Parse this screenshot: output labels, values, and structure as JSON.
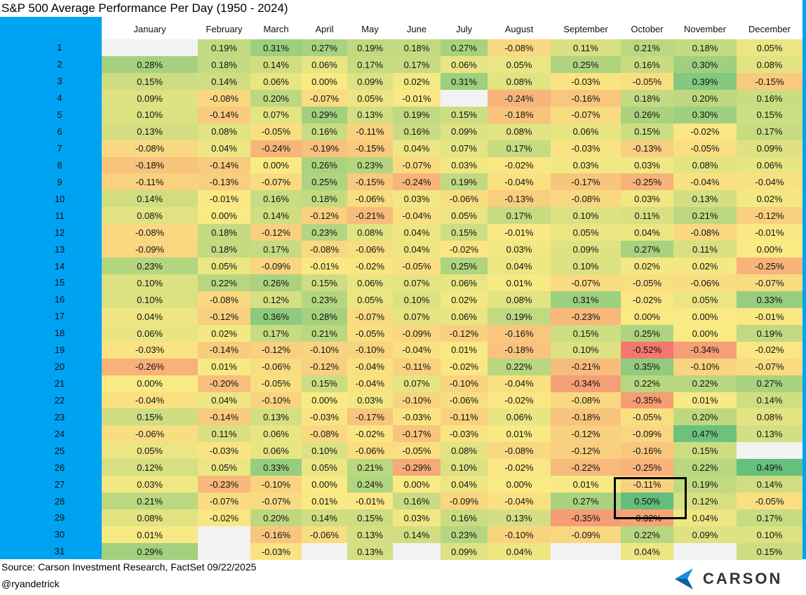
{
  "title": "S&P 500 Average Performance Per Day (1950 - 2024)",
  "table": {
    "columns": [
      "January",
      "February",
      "March",
      "April",
      "May",
      "June",
      "July",
      "August",
      "September",
      "October",
      "November",
      "December"
    ],
    "rows": [
      {
        "day": "1",
        "values": [
          null,
          "0.19%",
          "0.31%",
          "0.27%",
          "0.19%",
          "0.18%",
          "0.27%",
          "-0.08%",
          "0.11%",
          "0.21%",
          "0.18%",
          "0.05%"
        ]
      },
      {
        "day": "2",
        "values": [
          "0.28%",
          "0.18%",
          "0.14%",
          "0.06%",
          "0.17%",
          "0.17%",
          "0.06%",
          "0.05%",
          "0.25%",
          "0.16%",
          "0.30%",
          "0.08%"
        ]
      },
      {
        "day": "3",
        "values": [
          "0.15%",
          "0.14%",
          "0.06%",
          "0.00%",
          "0.09%",
          "0.02%",
          "0.31%",
          "0.08%",
          "-0.03%",
          "-0.05%",
          "0.39%",
          "-0.15%"
        ]
      },
      {
        "day": "4",
        "values": [
          "0.09%",
          "-0.08%",
          "0.20%",
          "-0.07%",
          "0.05%",
          "-0.01%",
          null,
          "-0.24%",
          "-0.16%",
          "0.18%",
          "0.20%",
          "0.16%"
        ]
      },
      {
        "day": "5",
        "values": [
          "0.10%",
          "-0.14%",
          "0.07%",
          "0.29%",
          "0.13%",
          "0.19%",
          "0.15%",
          "-0.18%",
          "-0.07%",
          "0.26%",
          "0.30%",
          "0.15%"
        ]
      },
      {
        "day": "6",
        "values": [
          "0.13%",
          "0.08%",
          "-0.05%",
          "0.16%",
          "-0.11%",
          "0.16%",
          "0.09%",
          "0.08%",
          "0.06%",
          "0.15%",
          "-0.02%",
          "0.17%"
        ]
      },
      {
        "day": "7",
        "values": [
          "-0.08%",
          "0.04%",
          "-0.24%",
          "-0.19%",
          "-0.15%",
          "0.04%",
          "0.07%",
          "0.17%",
          "-0.03%",
          "-0.13%",
          "-0.05%",
          "0.09%"
        ]
      },
      {
        "day": "8",
        "values": [
          "-0.18%",
          "-0.14%",
          "0.00%",
          "0.26%",
          "0.23%",
          "-0.07%",
          "0.03%",
          "-0.02%",
          "0.03%",
          "0.03%",
          "0.08%",
          "0.06%"
        ]
      },
      {
        "day": "9",
        "values": [
          "-0.11%",
          "-0.13%",
          "-0.07%",
          "0.25%",
          "-0.15%",
          "-0.24%",
          "0.19%",
          "-0.04%",
          "-0.17%",
          "-0.25%",
          "-0.04%",
          "-0.04%"
        ]
      },
      {
        "day": "10",
        "values": [
          "0.14%",
          "-0.01%",
          "0.16%",
          "0.18%",
          "-0.06%",
          "0.03%",
          "-0.06%",
          "-0.13%",
          "-0.08%",
          "0.03%",
          "0.13%",
          "0.02%"
        ]
      },
      {
        "day": "11",
        "values": [
          "0.08%",
          "0.00%",
          "0.14%",
          "-0.12%",
          "-0.21%",
          "-0.04%",
          "0.05%",
          "0.17%",
          "0.10%",
          "0.11%",
          "0.21%",
          "-0.12%"
        ]
      },
      {
        "day": "12",
        "values": [
          "-0.08%",
          "0.18%",
          "-0.12%",
          "0.23%",
          "0.08%",
          "0.04%",
          "0.15%",
          "-0.01%",
          "0.05%",
          "0.04%",
          "-0.08%",
          "-0.01%"
        ]
      },
      {
        "day": "13",
        "values": [
          "-0.09%",
          "0.18%",
          "0.17%",
          "-0.08%",
          "-0.06%",
          "0.04%",
          "-0.02%",
          "0.03%",
          "0.09%",
          "0.27%",
          "0.11%",
          "0.00%"
        ]
      },
      {
        "day": "14",
        "values": [
          "0.23%",
          "0.05%",
          "-0.09%",
          "-0.01%",
          "-0.02%",
          "-0.05%",
          "0.25%",
          "0.04%",
          "0.10%",
          "0.02%",
          "0.02%",
          "-0.25%"
        ]
      },
      {
        "day": "15",
        "values": [
          "0.10%",
          "0.22%",
          "0.26%",
          "0.15%",
          "0.06%",
          "0.07%",
          "0.06%",
          "0.01%",
          "-0.07%",
          "-0.05%",
          "-0.06%",
          "-0.07%"
        ]
      },
      {
        "day": "16",
        "values": [
          "0.10%",
          "-0.08%",
          "0.12%",
          "0.23%",
          "0.05%",
          "0.10%",
          "0.02%",
          "0.08%",
          "0.31%",
          "-0.02%",
          "0.05%",
          "0.33%"
        ]
      },
      {
        "day": "17",
        "values": [
          "0.04%",
          "-0.12%",
          "0.36%",
          "0.28%",
          "-0.07%",
          "0.07%",
          "0.06%",
          "0.19%",
          "-0.23%",
          "0.00%",
          "0.00%",
          "-0.01%"
        ]
      },
      {
        "day": "18",
        "values": [
          "0.06%",
          "0.02%",
          "0.17%",
          "0.21%",
          "-0.05%",
          "-0.09%",
          "-0.12%",
          "-0.16%",
          "0.15%",
          "0.25%",
          "0.00%",
          "0.19%"
        ]
      },
      {
        "day": "19",
        "values": [
          "-0.03%",
          "-0.14%",
          "-0.12%",
          "-0.10%",
          "-0.10%",
          "-0.04%",
          "0.01%",
          "-0.18%",
          "0.10%",
          "-0.52%",
          "-0.34%",
          "-0.02%"
        ]
      },
      {
        "day": "20",
        "values": [
          "-0.26%",
          "0.01%",
          "-0.06%",
          "-0.12%",
          "-0.04%",
          "-0.11%",
          "-0.02%",
          "0.22%",
          "-0.21%",
          "0.35%",
          "-0.10%",
          "-0.07%"
        ]
      },
      {
        "day": "21",
        "values": [
          "0.00%",
          "-0.20%",
          "-0.05%",
          "0.15%",
          "-0.04%",
          "0.07%",
          "-0.10%",
          "-0.04%",
          "-0.34%",
          "0.22%",
          "0.22%",
          "0.27%"
        ]
      },
      {
        "day": "22",
        "values": [
          "-0.04%",
          "0.04%",
          "-0.10%",
          "0.00%",
          "0.03%",
          "-0.10%",
          "-0.06%",
          "-0.02%",
          "-0.08%",
          "-0.35%",
          "0.01%",
          "0.14%"
        ]
      },
      {
        "day": "23",
        "values": [
          "0.15%",
          "-0.14%",
          "0.13%",
          "-0.03%",
          "-0.17%",
          "-0.03%",
          "-0.11%",
          "0.06%",
          "-0.18%",
          "-0.05%",
          "0.20%",
          "0.08%"
        ]
      },
      {
        "day": "24",
        "values": [
          "-0.06%",
          "0.11%",
          "0.06%",
          "-0.08%",
          "-0.02%",
          "-0.17%",
          "-0.03%",
          "0.01%",
          "-0.12%",
          "-0.09%",
          "0.47%",
          "0.13%"
        ]
      },
      {
        "day": "25",
        "values": [
          "0.05%",
          "-0.03%",
          "0.06%",
          "0.10%",
          "-0.06%",
          "-0.05%",
          "0.08%",
          "-0.08%",
          "-0.12%",
          "-0.16%",
          "0.15%",
          null
        ]
      },
      {
        "day": "26",
        "values": [
          "0.12%",
          "0.05%",
          "0.33%",
          "0.05%",
          "0.21%",
          "-0.29%",
          "0.10%",
          "-0.02%",
          "-0.22%",
          "-0.25%",
          "0.22%",
          "0.49%"
        ]
      },
      {
        "day": "27",
        "values": [
          "0.03%",
          "-0.23%",
          "-0.10%",
          "0.00%",
          "0.24%",
          "0.00%",
          "0.04%",
          "0.00%",
          "0.01%",
          "-0.11%",
          "0.19%",
          "0.14%"
        ]
      },
      {
        "day": "28",
        "values": [
          "0.21%",
          "-0.07%",
          "-0.07%",
          "0.01%",
          "-0.01%",
          "0.16%",
          "-0.09%",
          "-0.04%",
          "0.27%",
          "0.50%",
          "0.12%",
          "-0.05%"
        ]
      },
      {
        "day": "29",
        "values": [
          "0.08%",
          "-0.02%",
          "0.20%",
          "0.14%",
          "0.15%",
          "0.03%",
          "0.16%",
          "0.13%",
          "-0.35%",
          "-0.32%",
          "0.04%",
          "0.17%"
        ]
      },
      {
        "day": "30",
        "values": [
          "0.01%",
          null,
          "-0.16%",
          "-0.06%",
          "0.13%",
          "0.14%",
          "0.23%",
          "-0.10%",
          "-0.09%",
          "0.22%",
          "0.09%",
          "0.10%"
        ]
      },
      {
        "day": "31",
        "values": [
          "0.29%",
          null,
          "-0.03%",
          null,
          "0.13%",
          null,
          "0.09%",
          "0.04%",
          null,
          "0.04%",
          null,
          "0.15%"
        ]
      }
    ]
  },
  "footer": {
    "source": "Source: Carson Investment Research, FactSet 09/22/2025",
    "handle": "@ryandetrick",
    "logo": "CARSON"
  }
}
